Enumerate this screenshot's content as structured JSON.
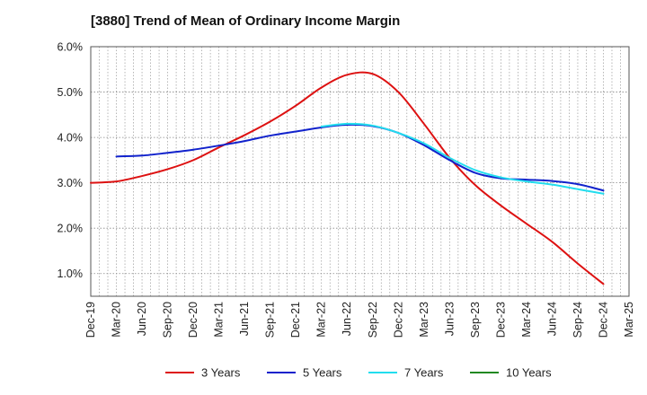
{
  "title": "[3880]  Trend of Mean of Ordinary Income Margin",
  "chart_data": {
    "type": "line",
    "title": "[3880]  Trend of Mean of Ordinary Income Margin",
    "xlabel": "",
    "ylabel": "",
    "x_tick_labels": [
      "Dec-19",
      "Mar-20",
      "Jun-20",
      "Sep-20",
      "Dec-20",
      "Mar-21",
      "Jun-21",
      "Sep-21",
      "Dec-21",
      "Mar-22",
      "Jun-22",
      "Sep-22",
      "Dec-22",
      "Mar-23",
      "Jun-23",
      "Sep-23",
      "Dec-23",
      "Mar-24",
      "Jun-24",
      "Sep-24",
      "Dec-24",
      "Mar-25"
    ],
    "y_tick_labels": [
      "1.0%",
      "2.0%",
      "3.0%",
      "4.0%",
      "5.0%",
      "6.0%"
    ],
    "y_ticks": [
      1,
      2,
      3,
      4,
      5,
      6
    ],
    "ylim": [
      0.5,
      6.0
    ],
    "grid": true,
    "legend_position": "bottom",
    "series": [
      {
        "name": "3 Years",
        "color": "#dd1111",
        "x": [
          "Dec-19",
          "Mar-20",
          "Jun-20",
          "Sep-20",
          "Dec-20",
          "Mar-21",
          "Jun-21",
          "Sep-21",
          "Dec-21",
          "Mar-22",
          "Jun-22",
          "Sep-22",
          "Dec-22",
          "Mar-23",
          "Jun-23",
          "Sep-23",
          "Dec-23",
          "Mar-24",
          "Jun-24",
          "Sep-24",
          "Dec-24"
        ],
        "values": [
          3.0,
          3.03,
          3.15,
          3.3,
          3.5,
          3.78,
          4.05,
          4.35,
          4.7,
          5.1,
          5.38,
          5.4,
          5.0,
          4.3,
          3.55,
          2.95,
          2.5,
          2.1,
          1.7,
          1.22,
          0.77
        ]
      },
      {
        "name": "5 Years",
        "color": "#1122cc",
        "x": [
          "Mar-20",
          "Jun-20",
          "Sep-20",
          "Dec-20",
          "Mar-21",
          "Jun-21",
          "Sep-21",
          "Dec-21",
          "Mar-22",
          "Jun-22",
          "Sep-22",
          "Dec-22",
          "Mar-23",
          "Jun-23",
          "Sep-23",
          "Dec-23",
          "Mar-24",
          "Jun-24",
          "Sep-24",
          "Dec-24"
        ],
        "values": [
          3.58,
          3.6,
          3.66,
          3.73,
          3.82,
          3.92,
          4.04,
          4.13,
          4.22,
          4.28,
          4.25,
          4.1,
          3.83,
          3.5,
          3.22,
          3.1,
          3.07,
          3.04,
          2.97,
          2.83
        ]
      },
      {
        "name": "7 Years",
        "color": "#22ddee",
        "x": [
          "Mar-22",
          "Jun-22",
          "Sep-22",
          "Dec-22",
          "Mar-23",
          "Jun-23",
          "Sep-23",
          "Dec-23",
          "Mar-24",
          "Jun-24",
          "Sep-24",
          "Dec-24"
        ],
        "values": [
          4.24,
          4.3,
          4.26,
          4.1,
          3.87,
          3.55,
          3.28,
          3.12,
          3.03,
          2.96,
          2.86,
          2.76
        ]
      },
      {
        "name": "10 Years",
        "color": "#228822",
        "x": [],
        "values": []
      }
    ]
  }
}
